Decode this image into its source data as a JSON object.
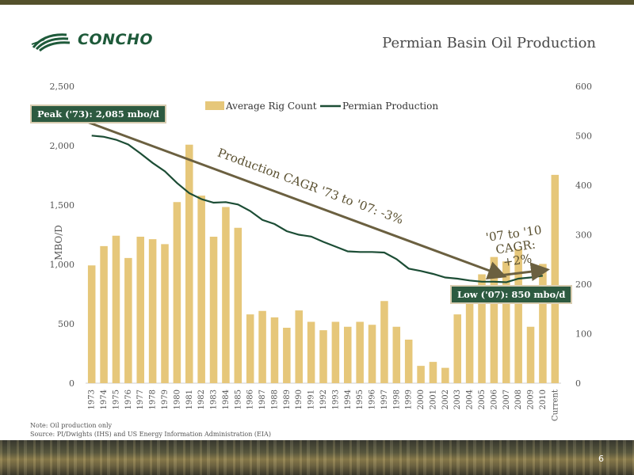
{
  "header": {
    "logo_text": "CONCHO",
    "title": "Permian Basin Oil Production"
  },
  "callouts": {
    "peak": "Peak ('73): 2,085 mbo/d",
    "low": "Low ('07): 850 mbo/d",
    "cagr_long": "Production CAGR '73 to '07: -3%",
    "cagr_short_line1": "'07 to '10",
    "cagr_short_line2": "CAGR:",
    "cagr_short_line3": "+2%"
  },
  "notes": {
    "line1": "Note: Oil production only",
    "line2": "Source: PI/Dwights (IHS) and US Energy Information Administration (EIA)"
  },
  "page_number": "6",
  "colors": {
    "bar": "#e6c77a",
    "line": "#1c4d35",
    "arrow": "#6b6040",
    "callout_bg": "#2d5a40",
    "axis_text": "#555555"
  },
  "chart_data": {
    "type": "bar+line",
    "categories": [
      "1973",
      "1974",
      "1975",
      "1976",
      "1977",
      "1978",
      "1979",
      "1980",
      "1981",
      "1982",
      "1983",
      "1984",
      "1985",
      "1986",
      "1987",
      "1988",
      "1989",
      "1990",
      "1991",
      "1992",
      "1993",
      "1994",
      "1995",
      "1996",
      "1997",
      "1998",
      "1999",
      "2000",
      "2001",
      "2002",
      "2003",
      "2004",
      "2005",
      "2006",
      "2007",
      "2008",
      "2009",
      "2010",
      "Current"
    ],
    "ylabel": "MBO/D",
    "y_left": {
      "min": 0,
      "max": 2500,
      "ticks": [
        0,
        500,
        1000,
        1500,
        2000,
        2500
      ],
      "tick_labels": [
        "0",
        "500",
        "1,000",
        "1,500",
        "2,000",
        "2,500"
      ]
    },
    "y_right": {
      "min": 0,
      "max": 600,
      "ticks": [
        0,
        100,
        200,
        300,
        400,
        500,
        600
      ],
      "tick_labels": [
        "0",
        "100",
        "200",
        "300",
        "400",
        "500",
        "600"
      ]
    },
    "legend_position": "top-center",
    "series": [
      {
        "name": "Average Rig Count",
        "type": "bar",
        "axis": "right",
        "values": [
          238,
          277,
          298,
          253,
          296,
          291,
          281,
          366,
          482,
          379,
          296,
          356,
          314,
          139,
          146,
          133,
          112,
          147,
          124,
          107,
          124,
          114,
          124,
          118,
          166,
          114,
          88,
          35,
          43,
          31,
          139,
          178,
          220,
          255,
          246,
          271,
          114,
          241,
          421
        ]
      },
      {
        "name": "Permian Production",
        "type": "line",
        "axis": "left",
        "values": [
          2085,
          2075,
          2050,
          2010,
          1935,
          1855,
          1785,
          1685,
          1600,
          1550,
          1520,
          1525,
          1505,
          1450,
          1375,
          1340,
          1280,
          1250,
          1235,
          1190,
          1150,
          1110,
          1105,
          1105,
          1100,
          1045,
          965,
          945,
          920,
          890,
          880,
          865,
          855,
          855,
          850,
          880,
          890,
          905,
          null
        ]
      }
    ]
  }
}
